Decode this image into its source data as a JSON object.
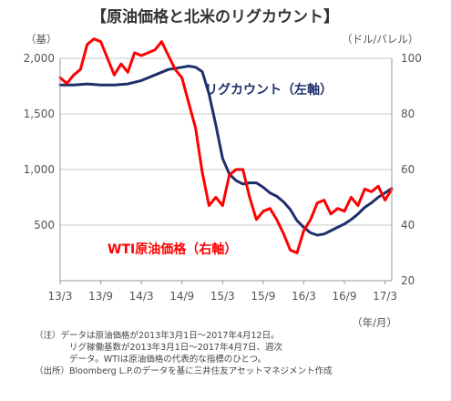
{
  "chart_data": {
    "type": "line",
    "title": "【原油価格と北米のリグカウント】",
    "left_axis_unit": "（基）",
    "right_axis_unit": "（ドル/バレル）",
    "x_axis_unit": "（年/月）",
    "x_ticks": [
      "13/3",
      "13/9",
      "14/3",
      "14/9",
      "15/3",
      "15/9",
      "16/3",
      "16/9",
      "17/3"
    ],
    "left_axis": {
      "ylim": [
        0,
        2000
      ],
      "ticks": [
        "2,000",
        "1,500",
        "1,000",
        "500"
      ],
      "tick_values": [
        2000,
        1500,
        1000,
        500
      ]
    },
    "right_axis": {
      "ylim": [
        20,
        100
      ],
      "ticks": [
        "100",
        "80",
        "60",
        "40",
        "20"
      ],
      "tick_values": [
        100,
        80,
        60,
        40,
        20
      ]
    },
    "grid": "horizontal",
    "series": [
      {
        "name": "リグカウント（左軸）",
        "axis": "left",
        "color": "#1f2f6b",
        "points": [
          [
            "2013-03",
            1760
          ],
          [
            "2013-05",
            1760
          ],
          [
            "2013-07",
            1770
          ],
          [
            "2013-09",
            1760
          ],
          [
            "2013-11",
            1760
          ],
          [
            "2014-01",
            1770
          ],
          [
            "2014-03",
            1800
          ],
          [
            "2014-05",
            1850
          ],
          [
            "2014-07",
            1900
          ],
          [
            "2014-09",
            1920
          ],
          [
            "2014-10",
            1930
          ],
          [
            "2014-11",
            1920
          ],
          [
            "2014-12",
            1880
          ],
          [
            "2015-01",
            1680
          ],
          [
            "2015-02",
            1400
          ],
          [
            "2015-03",
            1100
          ],
          [
            "2015-04",
            960
          ],
          [
            "2015-05",
            900
          ],
          [
            "2015-06",
            870
          ],
          [
            "2015-07",
            880
          ],
          [
            "2015-08",
            880
          ],
          [
            "2015-09",
            840
          ],
          [
            "2015-10",
            790
          ],
          [
            "2015-11",
            760
          ],
          [
            "2015-12",
            710
          ],
          [
            "2016-01",
            640
          ],
          [
            "2016-02",
            540
          ],
          [
            "2016-03",
            480
          ],
          [
            "2016-04",
            430
          ],
          [
            "2016-05",
            410
          ],
          [
            "2016-06",
            420
          ],
          [
            "2016-07",
            450
          ],
          [
            "2016-08",
            480
          ],
          [
            "2016-09",
            510
          ],
          [
            "2016-10",
            550
          ],
          [
            "2016-11",
            600
          ],
          [
            "2016-12",
            660
          ],
          [
            "2017-01",
            700
          ],
          [
            "2017-02",
            750
          ],
          [
            "2017-03",
            790
          ],
          [
            "2017-04",
            830
          ]
        ]
      },
      {
        "name": "WTI原油価格（右軸）",
        "axis": "right",
        "color": "#ff0000",
        "points": [
          [
            "2013-03",
            93
          ],
          [
            "2013-04",
            91
          ],
          [
            "2013-05",
            94
          ],
          [
            "2013-06",
            96
          ],
          [
            "2013-07",
            105
          ],
          [
            "2013-08",
            107
          ],
          [
            "2013-09",
            106
          ],
          [
            "2013-10",
            100
          ],
          [
            "2013-11",
            94
          ],
          [
            "2013-12",
            98
          ],
          [
            "2014-01",
            95
          ],
          [
            "2014-02",
            102
          ],
          [
            "2014-03",
            101
          ],
          [
            "2014-04",
            102
          ],
          [
            "2014-05",
            103
          ],
          [
            "2014-06",
            106
          ],
          [
            "2014-07",
            101
          ],
          [
            "2014-08",
            96
          ],
          [
            "2014-09",
            93
          ],
          [
            "2014-10",
            84
          ],
          [
            "2014-11",
            75
          ],
          [
            "2014-12",
            59
          ],
          [
            "2015-01",
            47
          ],
          [
            "2015-02",
            50
          ],
          [
            "2015-03",
            47
          ],
          [
            "2015-04",
            58
          ],
          [
            "2015-05",
            60
          ],
          [
            "2015-06",
            60
          ],
          [
            "2015-07",
            50
          ],
          [
            "2015-08",
            42
          ],
          [
            "2015-09",
            45
          ],
          [
            "2015-10",
            46
          ],
          [
            "2015-11",
            42
          ],
          [
            "2015-12",
            37
          ],
          [
            "2016-01",
            31
          ],
          [
            "2016-02",
            30
          ],
          [
            "2016-03",
            38
          ],
          [
            "2016-04",
            42
          ],
          [
            "2016-05",
            48
          ],
          [
            "2016-06",
            49
          ],
          [
            "2016-07",
            44
          ],
          [
            "2016-08",
            46
          ],
          [
            "2016-09",
            45
          ],
          [
            "2016-10",
            50
          ],
          [
            "2016-11",
            47
          ],
          [
            "2016-12",
            53
          ],
          [
            "2017-01",
            52
          ],
          [
            "2017-02",
            54
          ],
          [
            "2017-03",
            49
          ],
          [
            "2017-04",
            53
          ]
        ]
      }
    ],
    "annotations": {
      "rig_label": "リグカウント（左軸）",
      "wti_label": "WTI原油価格（右軸）"
    }
  },
  "notes": [
    "（注）データは原油価格が2013年3月1日～2017年4月12日。",
    "リグ稼働基数が2013年3月1日～2017年4月7日、週次",
    "データ。WTIは原油価格の代表的な指標のひとつ。",
    "（出所）Bloomberg L.P.のデータを基に三井住友アセットマネジメント作成"
  ]
}
